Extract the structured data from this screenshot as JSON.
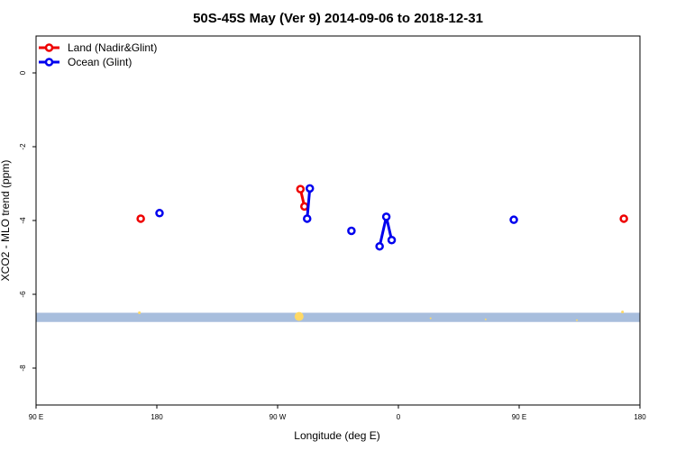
{
  "chart_data": {
    "type": "line",
    "title": "50S-45S May (Ver 9)   2014-09-06 to 2018-12-31",
    "xlabel": "Longitude (deg E)",
    "ylabel": "XCO2 - MLO trend (ppm)",
    "xlim": [
      90,
      540
    ],
    "ylim": [
      -9,
      1
    ],
    "x_ticks": [
      {
        "value": 90,
        "label": "90 E"
      },
      {
        "value": 180,
        "label": "180"
      },
      {
        "value": 270,
        "label": "90 W"
      },
      {
        "value": 360,
        "label": "0"
      },
      {
        "value": 450,
        "label": "90 E"
      },
      {
        "value": 540,
        "label": "180"
      }
    ],
    "y_ticks": [
      {
        "value": 0,
        "label": "0"
      },
      {
        "value": -2,
        "label": "-2"
      },
      {
        "value": -4,
        "label": "-4"
      },
      {
        "value": -6,
        "label": "-6"
      },
      {
        "value": -8,
        "label": "-8"
      }
    ],
    "legend": {
      "position": "top-left"
    },
    "series": [
      {
        "name": "Land (Nadir&Glint)",
        "color": "#ee0000",
        "segments": [
          [
            {
              "x": 168,
              "y": -3.95
            }
          ],
          [
            {
              "x": 287,
              "y": -3.15
            },
            {
              "x": 290,
              "y": -3.62
            }
          ],
          [
            {
              "x": 528,
              "y": -3.95
            }
          ]
        ]
      },
      {
        "name": "Ocean (Glint)",
        "color": "#0000ee",
        "segments": [
          [
            {
              "x": 182,
              "y": -3.8
            }
          ],
          [
            {
              "x": 292,
              "y": -3.95
            },
            {
              "x": 294,
              "y": -3.13
            }
          ],
          [
            {
              "x": 325,
              "y": -4.28
            }
          ],
          [
            {
              "x": 346,
              "y": -4.7
            },
            {
              "x": 351,
              "y": -3.9
            },
            {
              "x": 355,
              "y": -4.53
            }
          ],
          [
            {
              "x": 446,
              "y": -3.98
            }
          ]
        ]
      }
    ],
    "band": {
      "y_range": [
        -6.75,
        -6.5
      ],
      "color": "#a8bedd"
    },
    "markers": {
      "color": "#ffd966",
      "points": [
        {
          "x": 167,
          "y": -6.5,
          "size": 1.5
        },
        {
          "x": 286,
          "y": -6.6,
          "size": 5
        },
        {
          "x": 384,
          "y": -6.65,
          "size": 1
        },
        {
          "x": 493,
          "y": -6.7,
          "size": 1
        },
        {
          "x": 425,
          "y": -6.68,
          "size": 1
        },
        {
          "x": 527,
          "y": -6.48,
          "size": 1.5
        }
      ]
    }
  }
}
